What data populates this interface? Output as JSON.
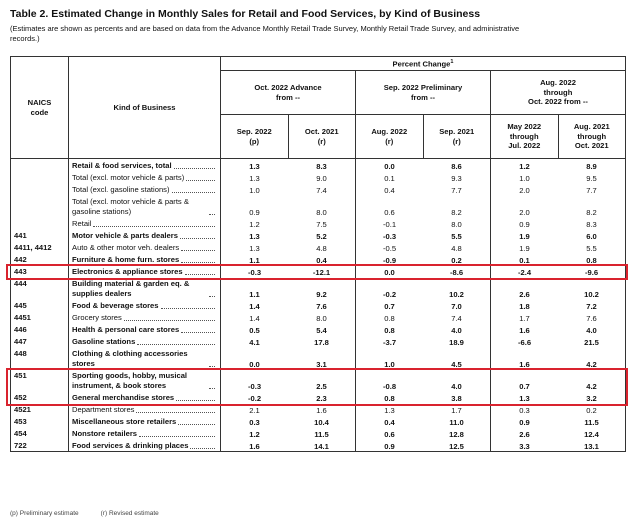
{
  "header": {
    "title": "Table 2.  Estimated Change in Monthly Sales for Retail and Food Services, by Kind of Business",
    "subtitle": "(Estimates are shown as percents and are based on data from the Advance Monthly Retail Trade Survey, Monthly Retail Trade Survey, and administrative records.)"
  },
  "columns": {
    "code": "NAICS\ncode",
    "business": "Kind of Business",
    "percent_change": "Percent Change",
    "footnote_mark": "1",
    "groups": [
      "Oct. 2022 Advance\nfrom --",
      "Sep. 2022 Preliminary\nfrom --",
      "Aug. 2022\nthrough\nOct. 2022 from --"
    ],
    "subcolumns": [
      "Sep. 2022\n(p)",
      "Oct. 2021\n(r)",
      "Aug. 2022\n(r)",
      "Sep. 2021\n(r)",
      "May 2022\nthrough\nJul. 2022",
      "Aug. 2021\nthrough\nOct. 2021"
    ]
  },
  "table": {
    "rows": [
      {
        "label": "Retail & food services, total",
        "bold": true,
        "values": [
          "1.3",
          "8.3",
          "0.0",
          "8.6",
          "1.2",
          "8.9"
        ]
      },
      {
        "label": "Total (excl. motor vehicle & parts)",
        "values": [
          "1.3",
          "9.0",
          "0.1",
          "9.3",
          "1.0",
          "9.5"
        ]
      },
      {
        "label": "Total (excl. gasoline stations)",
        "values": [
          "1.0",
          "7.4",
          "0.4",
          "7.7",
          "2.0",
          "7.7"
        ]
      },
      {
        "label": "Total (excl. motor vehicle & parts & gasoline stations)",
        "values": [
          "0.9",
          "8.0",
          "0.6",
          "8.2",
          "2.0",
          "8.2"
        ]
      },
      {
        "label": "Retail",
        "values": [
          "1.2",
          "7.5",
          "-0.1",
          "8.0",
          "0.9",
          "8.3"
        ]
      },
      {
        "code": "441",
        "label": "Motor vehicle & parts dealers",
        "bold": true,
        "values": [
          "1.3",
          "5.2",
          "-0.3",
          "5.5",
          "1.9",
          "6.0"
        ]
      },
      {
        "code": "4411, 4412",
        "label": "Auto & other motor veh. dealers",
        "values": [
          "1.3",
          "4.8",
          "-0.5",
          "4.8",
          "1.9",
          "5.5"
        ]
      },
      {
        "code": "442",
        "label": "Furniture & home furn. stores",
        "bold": true,
        "values": [
          "1.1",
          "0.4",
          "-0.9",
          "0.2",
          "0.1",
          "0.8"
        ]
      },
      {
        "code": "443",
        "label": "Electronics & appliance stores",
        "bold": true,
        "highlight": true,
        "values": [
          "-0.3",
          "-12.1",
          "0.0",
          "-8.6",
          "-2.4",
          "-9.6"
        ]
      },
      {
        "code": "444",
        "label": "Building material & garden eq. & supplies dealers",
        "bold": true,
        "values": [
          "1.1",
          "9.2",
          "-0.2",
          "10.2",
          "2.6",
          "10.2"
        ]
      },
      {
        "code": "445",
        "label": "Food & beverage stores",
        "bold": true,
        "values": [
          "1.4",
          "7.6",
          "0.7",
          "7.0",
          "1.8",
          "7.2"
        ]
      },
      {
        "code": "4451",
        "label": "Grocery stores",
        "values": [
          "1.4",
          "8.0",
          "0.8",
          "7.4",
          "1.7",
          "7.6"
        ]
      },
      {
        "code": "446",
        "label": "Health & personal care stores",
        "bold": true,
        "values": [
          "0.5",
          "5.4",
          "0.8",
          "4.0",
          "1.6",
          "4.0"
        ]
      },
      {
        "code": "447",
        "label": "Gasoline stations",
        "bold": true,
        "values": [
          "4.1",
          "17.8",
          "-3.7",
          "18.9",
          "-6.6",
          "21.5"
        ]
      },
      {
        "code": "448",
        "label": "Clothing & clothing accessories stores",
        "bold": true,
        "values": [
          "0.0",
          "3.1",
          "1.0",
          "4.5",
          "1.6",
          "4.2"
        ]
      },
      {
        "code": "451",
        "label": "Sporting goods, hobby, musical instrument, & book stores",
        "bold": true,
        "highlight": true,
        "values": [
          "-0.3",
          "2.5",
          "-0.8",
          "4.0",
          "0.7",
          "4.2"
        ]
      },
      {
        "code": "452",
        "label": "General merchandise stores",
        "bold": true,
        "highlight": true,
        "values": [
          "-0.2",
          "2.3",
          "0.8",
          "3.8",
          "1.3",
          "3.2"
        ]
      },
      {
        "code": "4521",
        "label": "Department stores",
        "values": [
          "2.1",
          "1.6",
          "1.3",
          "1.7",
          "0.3",
          "0.2"
        ]
      },
      {
        "code": "453",
        "label": "Miscellaneous store retailers",
        "bold": true,
        "values": [
          "0.3",
          "10.4",
          "0.4",
          "11.0",
          "0.9",
          "11.5"
        ]
      },
      {
        "code": "454",
        "label": "Nonstore retailers",
        "bold": true,
        "values": [
          "1.2",
          "11.5",
          "0.6",
          "12.8",
          "2.6",
          "12.4"
        ]
      },
      {
        "code": "722",
        "label": "Food services & drinking places",
        "bold": true,
        "values": [
          "1.6",
          "14.1",
          "0.9",
          "12.5",
          "3.3",
          "13.1"
        ]
      }
    ]
  },
  "footer": {
    "notes": [
      "(p) Preliminary estimate",
      "(r) Revised estimate"
    ]
  }
}
